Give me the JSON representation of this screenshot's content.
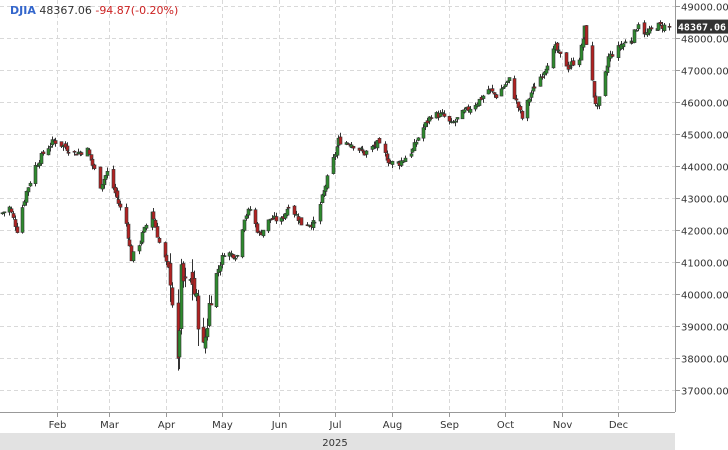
{
  "header": {
    "symbol": "DJIA",
    "last_price": "48367.06",
    "change": "-94.87(-0.20%)"
  },
  "colors": {
    "up": "#2e8b2e",
    "down": "#b22222",
    "grid": "#d9d9d9",
    "last_label_bg": "#333333"
  },
  "chart_data": {
    "type": "candlestick",
    "title": "",
    "xlabel": "2025",
    "ylabel": "",
    "ylim": [
      36300,
      49200
    ],
    "y_ticks": [
      "37000.00",
      "38000.00",
      "39000.00",
      "40000.00",
      "41000.00",
      "42000.00",
      "43000.00",
      "44000.00",
      "45000.00",
      "46000.00",
      "47000.00",
      "48000.00",
      "49000.00"
    ],
    "x_ticks": [
      "Feb",
      "Mar",
      "Apr",
      "May",
      "Jun",
      "Jul",
      "Aug",
      "Sep",
      "Oct",
      "Nov",
      "Dec"
    ],
    "x_tick_dates": [
      "2025-02-01",
      "2025-03-01",
      "2025-04-01",
      "2025-05-01",
      "2025-06-01",
      "2025-07-01",
      "2025-08-01",
      "2025-09-01",
      "2025-10-01",
      "2025-11-01",
      "2025-12-01"
    ],
    "year_label": "2025",
    "last_value_label": "48367.06",
    "grid": true,
    "series": [
      {
        "close_points": [
          [
            "2025-01-01",
            42500
          ],
          [
            "2025-01-06",
            42700
          ],
          [
            "2025-01-10",
            42000
          ],
          [
            "2025-01-15",
            43200
          ],
          [
            "2025-01-20",
            44000
          ],
          [
            "2025-01-24",
            44400
          ],
          [
            "2025-01-30",
            44800
          ],
          [
            "2025-02-05",
            44600
          ],
          [
            "2025-02-10",
            44400
          ],
          [
            "2025-02-17",
            44500
          ],
          [
            "2025-02-24",
            43400
          ],
          [
            "2025-02-28",
            43800
          ],
          [
            "2025-03-05",
            43000
          ],
          [
            "2025-03-10",
            42200
          ],
          [
            "2025-03-13",
            41100
          ],
          [
            "2025-03-18",
            41700
          ],
          [
            "2025-03-24",
            42600
          ],
          [
            "2025-03-28",
            41600
          ],
          [
            "2025-04-03",
            40600
          ],
          [
            "2025-04-07",
            37600
          ],
          [
            "2025-04-09",
            40500
          ],
          [
            "2025-04-11",
            40200
          ],
          [
            "2025-04-15",
            40400
          ],
          [
            "2025-04-21",
            38200
          ],
          [
            "2025-04-25",
            40100
          ],
          [
            "2025-05-02",
            41300
          ],
          [
            "2025-05-09",
            41200
          ],
          [
            "2025-05-13",
            42400
          ],
          [
            "2025-05-16",
            42650
          ],
          [
            "2025-05-21",
            41850
          ],
          [
            "2025-05-27",
            42350
          ],
          [
            "2025-06-02",
            42300
          ],
          [
            "2025-06-06",
            42800
          ],
          [
            "2025-06-13",
            42200
          ],
          [
            "2025-06-20",
            42200
          ],
          [
            "2025-06-26",
            43400
          ],
          [
            "2025-07-03",
            44800
          ],
          [
            "2025-07-10",
            44700
          ],
          [
            "2025-07-17",
            44400
          ],
          [
            "2025-07-24",
            44700
          ],
          [
            "2025-07-31",
            44100
          ],
          [
            "2025-08-05",
            44100
          ],
          [
            "2025-08-12",
            44500
          ],
          [
            "2025-08-15",
            44900
          ],
          [
            "2025-08-22",
            45600
          ],
          [
            "2025-08-28",
            45600
          ],
          [
            "2025-09-02",
            45300
          ],
          [
            "2025-09-09",
            45700
          ],
          [
            "2025-09-16",
            46000
          ],
          [
            "2025-09-22",
            46400
          ],
          [
            "2025-09-26",
            46200
          ],
          [
            "2025-10-03",
            46700
          ],
          [
            "2025-10-10",
            45500
          ],
          [
            "2025-10-15",
            46300
          ],
          [
            "2025-10-21",
            46900
          ],
          [
            "2025-10-28",
            47700
          ],
          [
            "2025-11-04",
            47100
          ],
          [
            "2025-11-10",
            47400
          ],
          [
            "2025-11-13",
            48300
          ],
          [
            "2025-11-18",
            46200
          ],
          [
            "2025-11-20",
            45800
          ],
          [
            "2025-11-26",
            47400
          ],
          [
            "2025-12-03",
            47800
          ],
          [
            "2025-12-09",
            48000
          ],
          [
            "2025-12-12",
            48500
          ],
          [
            "2025-12-16",
            48100
          ],
          [
            "2025-12-22",
            48400
          ],
          [
            "2025-12-29",
            48367.06
          ]
        ]
      }
    ]
  }
}
